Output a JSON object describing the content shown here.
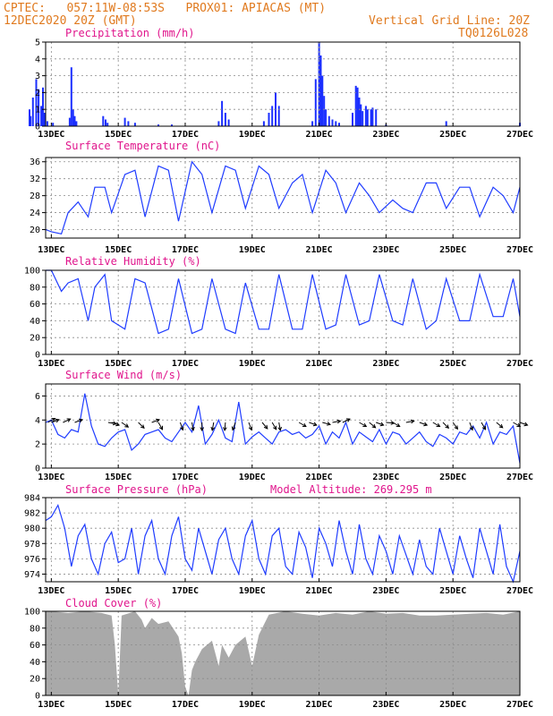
{
  "header": {
    "line1": "CPTEC:   057:11W-08:53S   PROX01: APIACAS (MT)",
    "line2": "12DEC2020 20Z (GMT)",
    "grid_line": "Vertical Grid Line: 20Z",
    "code": "TQ0126L028"
  },
  "colors": {
    "header": "#e07a1f",
    "title": "#e0158c",
    "series": "#1f3cff",
    "bars": "#1b2fff",
    "cloud": "#a9a9a9",
    "grid": "#8c8c8c"
  },
  "x_ticks": [
    "13DEC",
    "15DEC",
    "17DEC",
    "19DEC",
    "21DEC",
    "23DEC",
    "25DEC",
    "27DEC"
  ],
  "chart_data": [
    {
      "type": "bar",
      "title": "Precipitation (mm/h)",
      "ylim": [
        0,
        5
      ],
      "yticks": [
        0,
        1,
        2,
        3,
        4,
        5
      ],
      "x_range": [
        "12DEC 20Z",
        "27DEC 00Z"
      ],
      "bars": [
        [
          12.35,
          1.0
        ],
        [
          12.38,
          0.6
        ],
        [
          12.45,
          1.7
        ],
        [
          12.55,
          2.8
        ],
        [
          12.62,
          2.2
        ],
        [
          12.7,
          1.2
        ],
        [
          12.75,
          2.3
        ],
        [
          12.8,
          0.8
        ],
        [
          12.88,
          0.3
        ],
        [
          13.05,
          0.2
        ],
        [
          13.55,
          0.5
        ],
        [
          13.6,
          3.5
        ],
        [
          13.65,
          1.0
        ],
        [
          13.7,
          0.6
        ],
        [
          13.75,
          0.3
        ],
        [
          14.55,
          0.6
        ],
        [
          14.62,
          0.4
        ],
        [
          14.68,
          0.2
        ],
        [
          15.2,
          0.5
        ],
        [
          15.3,
          0.3
        ],
        [
          15.5,
          0.2
        ],
        [
          16.2,
          0.1
        ],
        [
          16.6,
          0.1
        ],
        [
          18.0,
          0.3
        ],
        [
          18.1,
          1.5
        ],
        [
          18.2,
          0.8
        ],
        [
          18.3,
          0.4
        ],
        [
          19.35,
          0.3
        ],
        [
          19.5,
          0.8
        ],
        [
          19.6,
          1.2
        ],
        [
          19.7,
          2.0
        ],
        [
          19.8,
          1.2
        ],
        [
          20.8,
          0.3
        ],
        [
          20.9,
          2.8
        ],
        [
          21.0,
          5.0
        ],
        [
          21.05,
          4.2
        ],
        [
          21.1,
          3.0
        ],
        [
          21.15,
          1.8
        ],
        [
          21.2,
          1.0
        ],
        [
          21.3,
          0.6
        ],
        [
          21.4,
          0.4
        ],
        [
          21.5,
          0.3
        ],
        [
          21.6,
          0.2
        ],
        [
          22.0,
          0.8
        ],
        [
          22.1,
          2.4
        ],
        [
          22.15,
          2.3
        ],
        [
          22.2,
          1.7
        ],
        [
          22.25,
          1.3
        ],
        [
          22.3,
          0.9
        ],
        [
          22.4,
          1.2
        ],
        [
          22.45,
          1.0
        ],
        [
          22.55,
          1.0
        ],
        [
          22.6,
          1.1
        ],
        [
          22.7,
          1.0
        ],
        [
          23.0,
          0.1
        ],
        [
          24.8,
          0.3
        ],
        [
          27.0,
          0.2
        ]
      ]
    },
    {
      "type": "line",
      "title": "Surface Temperature (nC)",
      "ylim": [
        18,
        37
      ],
      "yticks": [
        20,
        24,
        28,
        32,
        36
      ],
      "x": [
        12.83,
        13.0,
        13.3,
        13.5,
        13.8,
        14.1,
        14.3,
        14.6,
        14.8,
        15.2,
        15.5,
        15.8,
        16.2,
        16.5,
        16.8,
        17.2,
        17.5,
        17.8,
        18.2,
        18.5,
        18.8,
        19.2,
        19.5,
        19.8,
        20.2,
        20.5,
        20.8,
        21.2,
        21.5,
        21.8,
        22.2,
        22.5,
        22.8,
        23.2,
        23.5,
        23.8,
        24.2,
        24.5,
        24.8,
        25.2,
        25.5,
        25.8,
        26.2,
        26.5,
        26.8,
        27.0
      ],
      "y": [
        20,
        19.5,
        19,
        24,
        26.5,
        23,
        30,
        30,
        24,
        33,
        34,
        23,
        35,
        34,
        22,
        36,
        33,
        24,
        35,
        34,
        25,
        35,
        33,
        25,
        31,
        33,
        24,
        34,
        31,
        24,
        31,
        28,
        24,
        27,
        25,
        24,
        31,
        31,
        25,
        30,
        30,
        23,
        30,
        28,
        24,
        30
      ]
    },
    {
      "type": "line",
      "title": "Relative Humidity (%)",
      "ylim": [
        0,
        100
      ],
      "yticks": [
        0,
        20,
        40,
        60,
        80,
        100
      ],
      "x": [
        12.83,
        13.0,
        13.3,
        13.5,
        13.8,
        14.1,
        14.3,
        14.6,
        14.8,
        15.2,
        15.5,
        15.8,
        16.2,
        16.5,
        16.8,
        17.2,
        17.5,
        17.8,
        18.2,
        18.5,
        18.8,
        19.2,
        19.5,
        19.8,
        20.2,
        20.5,
        20.8,
        21.2,
        21.5,
        21.8,
        22.2,
        22.5,
        22.8,
        23.2,
        23.5,
        23.8,
        24.2,
        24.5,
        24.8,
        25.2,
        25.5,
        25.8,
        26.2,
        26.5,
        26.8,
        27.0
      ],
      "y": [
        100,
        100,
        75,
        85,
        90,
        40,
        80,
        95,
        40,
        30,
        90,
        85,
        25,
        30,
        90,
        25,
        30,
        90,
        30,
        25,
        85,
        30,
        30,
        95,
        30,
        30,
        95,
        30,
        35,
        95,
        35,
        40,
        95,
        40,
        35,
        90,
        30,
        40,
        90,
        40,
        40,
        95,
        45,
        45,
        90,
        45
      ]
    },
    {
      "type": "line",
      "title": "Surface Wind (m/s)",
      "ylim": [
        0,
        7
      ],
      "yticks": [
        0,
        2,
        4,
        6
      ],
      "x": [
        12.83,
        13.0,
        13.2,
        13.4,
        13.6,
        13.8,
        14.0,
        14.2,
        14.4,
        14.6,
        14.8,
        15.0,
        15.2,
        15.4,
        15.6,
        15.8,
        16.0,
        16.2,
        16.4,
        16.6,
        16.8,
        17.0,
        17.2,
        17.4,
        17.6,
        17.8,
        18.0,
        18.2,
        18.4,
        18.6,
        18.8,
        19.0,
        19.2,
        19.4,
        19.6,
        19.8,
        20.0,
        20.2,
        20.4,
        20.6,
        20.8,
        21.0,
        21.2,
        21.4,
        21.6,
        21.8,
        22.0,
        22.2,
        22.4,
        22.6,
        22.8,
        23.0,
        23.2,
        23.4,
        23.6,
        23.8,
        24.0,
        24.2,
        24.4,
        24.6,
        24.8,
        25.0,
        25.2,
        25.4,
        25.6,
        25.8,
        26.0,
        26.2,
        26.4,
        26.6,
        26.8,
        27.0
      ],
      "y": [
        3.8,
        4.0,
        2.8,
        2.5,
        3.2,
        3.0,
        6.2,
        3.5,
        2.0,
        1.8,
        2.5,
        3.0,
        3.2,
        1.5,
        2.0,
        2.8,
        3.0,
        3.2,
        2.5,
        2.2,
        3.0,
        3.8,
        3.0,
        5.2,
        2.0,
        2.8,
        4.0,
        2.5,
        2.2,
        5.5,
        2.0,
        2.6,
        3.0,
        2.5,
        2.0,
        3.0,
        3.2,
        2.8,
        3.0,
        2.5,
        2.8,
        3.5,
        2.0,
        3.0,
        2.5,
        3.8,
        2.0,
        3.0,
        2.6,
        2.2,
        3.2,
        2.0,
        3.0,
        2.8,
        2.0,
        2.5,
        3.0,
        2.2,
        1.8,
        2.8,
        2.5,
        2.0,
        3.0,
        2.8,
        3.5,
        2.5,
        3.8,
        2.0,
        3.0,
        2.8,
        3.5,
        0.4
      ],
      "arrows": [
        [
          12.9,
          30
        ],
        [
          13.0,
          20
        ],
        [
          13.35,
          25
        ],
        [
          13.7,
          20
        ],
        [
          14.7,
          -10
        ],
        [
          14.8,
          -20
        ],
        [
          15.1,
          -35
        ],
        [
          15.6,
          -45
        ],
        [
          16.0,
          20
        ],
        [
          16.2,
          -60
        ],
        [
          16.85,
          -70
        ],
        [
          17.2,
          -80
        ],
        [
          17.5,
          -90
        ],
        [
          17.85,
          -100
        ],
        [
          18.2,
          -95
        ],
        [
          18.5,
          -110
        ],
        [
          18.9,
          -70
        ],
        [
          19.3,
          -50
        ],
        [
          19.6,
          -60
        ],
        [
          19.8,
          -80
        ],
        [
          20.4,
          -30
        ],
        [
          20.7,
          -20
        ],
        [
          21.1,
          -15
        ],
        [
          21.4,
          10
        ],
        [
          21.7,
          25
        ],
        [
          22.2,
          -30
        ],
        [
          22.5,
          -40
        ],
        [
          22.7,
          -20
        ],
        [
          23.0,
          -5
        ],
        [
          23.2,
          -30
        ],
        [
          23.6,
          10
        ],
        [
          24.0,
          -20
        ],
        [
          24.4,
          -30
        ],
        [
          24.7,
          -45
        ],
        [
          25.0,
          -55
        ],
        [
          25.5,
          -70
        ],
        [
          25.85,
          -60
        ],
        [
          26.3,
          -40
        ],
        [
          26.8,
          -30
        ],
        [
          27.0,
          -20
        ]
      ]
    },
    {
      "type": "line",
      "title": "Surface Pressure (hPa)",
      "annotation": "Model Altitude: 269.295 m",
      "ylim": [
        973,
        984
      ],
      "yticks": [
        974,
        976,
        978,
        980,
        982,
        984
      ],
      "x": [
        12.83,
        13.0,
        13.2,
        13.4,
        13.6,
        13.8,
        14.0,
        14.2,
        14.4,
        14.6,
        14.8,
        15.0,
        15.2,
        15.4,
        15.6,
        15.8,
        16.0,
        16.2,
        16.4,
        16.6,
        16.8,
        17.0,
        17.2,
        17.4,
        17.6,
        17.8,
        18.0,
        18.2,
        18.4,
        18.6,
        18.8,
        19.0,
        19.2,
        19.4,
        19.6,
        19.8,
        20.0,
        20.2,
        20.4,
        20.6,
        20.8,
        21.0,
        21.2,
        21.4,
        21.6,
        21.8,
        22.0,
        22.2,
        22.4,
        22.6,
        22.8,
        23.0,
        23.2,
        23.4,
        23.6,
        23.8,
        24.0,
        24.2,
        24.4,
        24.6,
        24.8,
        25.0,
        25.2,
        25.4,
        25.6,
        25.8,
        26.0,
        26.2,
        26.4,
        26.6,
        26.8,
        27.0
      ],
      "y": [
        981,
        981.5,
        983,
        980,
        975,
        979,
        980.5,
        976,
        974,
        978,
        979.5,
        975.5,
        976,
        980,
        974,
        979,
        981,
        976,
        974,
        979,
        981.5,
        976,
        974.5,
        980,
        977,
        974,
        978.5,
        980,
        976,
        974,
        979,
        981,
        976,
        974,
        979,
        980,
        975,
        974,
        979.5,
        977.5,
        973.5,
        980,
        978,
        975,
        981,
        977,
        974,
        980.5,
        976,
        974,
        979,
        977,
        974,
        979,
        976.5,
        974,
        978.5,
        975,
        974,
        980,
        977,
        974,
        979,
        976,
        973.5,
        980,
        977,
        974,
        980.5,
        975,
        973,
        977
      ]
    },
    {
      "type": "area",
      "title": "Cloud Cover (%)",
      "ylim": [
        0,
        100
      ],
      "yticks": [
        0,
        20,
        40,
        60,
        80,
        100
      ],
      "x": [
        12.83,
        13.0,
        13.5,
        14.0,
        14.5,
        14.8,
        14.9,
        15.0,
        15.1,
        15.5,
        15.7,
        15.8,
        16.0,
        16.2,
        16.5,
        16.8,
        16.9,
        17.0,
        17.1,
        17.2,
        17.3,
        17.5,
        17.8,
        18.0,
        18.1,
        18.3,
        18.5,
        18.8,
        19.0,
        19.2,
        19.5,
        20.0,
        20.5,
        21.0,
        21.5,
        22.0,
        22.5,
        23.0,
        23.5,
        24.0,
        24.5,
        25.0,
        25.5,
        26.0,
        26.5,
        27.0
      ],
      "y": [
        100,
        100,
        98,
        100,
        98,
        95,
        60,
        0,
        95,
        100,
        90,
        80,
        92,
        85,
        88,
        70,
        50,
        10,
        0,
        30,
        40,
        55,
        65,
        35,
        60,
        45,
        60,
        70,
        35,
        72,
        96,
        100,
        97,
        95,
        98,
        96,
        100,
        97,
        98,
        95,
        95,
        96,
        97,
        98,
        96,
        100
      ]
    }
  ]
}
